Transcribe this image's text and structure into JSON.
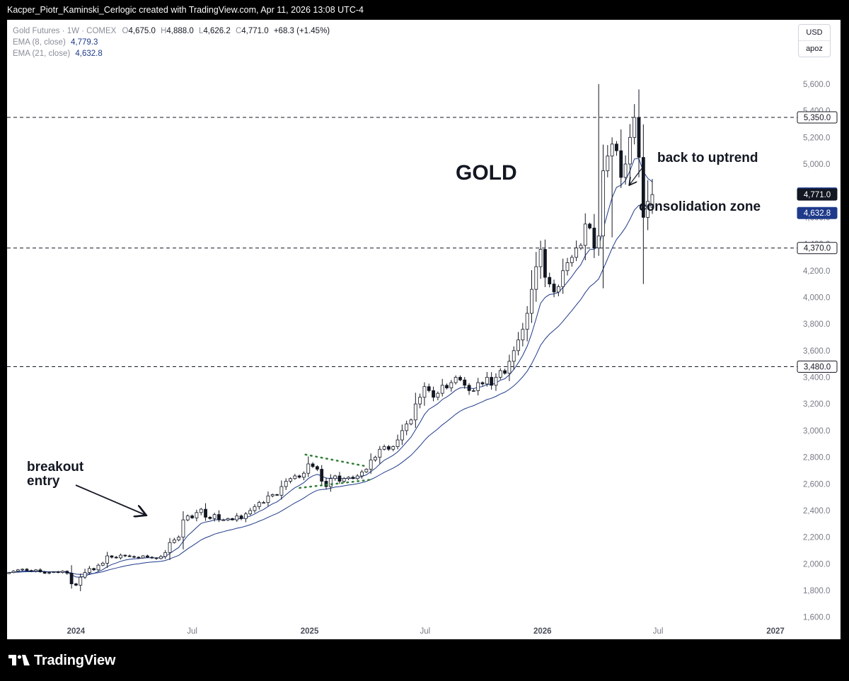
{
  "header": {
    "attribution": "Kacper_Piotr_Kaminski_Cerlogic created with TradingView.com, Apr 11, 2026 13:08 UTC-4"
  },
  "legend": {
    "symbol": "Gold Futures · 1W · COMEX",
    "o_label": "O",
    "o_value": "4,675.0",
    "h_label": "H",
    "h_value": "4,888.0",
    "l_label": "L",
    "l_value": "4,626.2",
    "c_label": "C",
    "c_value": "4,771.0",
    "change": "+68.3 (+1.45%)",
    "ema8_label": "EMA (8, close)",
    "ema8_value": "4,779.3",
    "ema21_label": "EMA (21, close)",
    "ema21_value": "4,632.8"
  },
  "currency_box": {
    "currency": "USD",
    "scale": "apoz"
  },
  "annotations": {
    "title": "GOLD",
    "uptrend": "back to uptrend",
    "consolidation": "consolidation zone",
    "breakout_line1": "breakout",
    "breakout_line2": "entry"
  },
  "footer": {
    "logo_text": "TradingView",
    "logo_icon": "tradingview-logo-icon"
  },
  "colors": {
    "ema": "#1e3a8a",
    "axis_text": "#787b86",
    "candle_up_fill": "#ffffff",
    "candle_down_fill": "#131722",
    "candle_outline": "#131722",
    "pattern_dots": "#2e7d32"
  },
  "chart_data": {
    "type": "candlestick",
    "symbol": "Gold Futures",
    "interval": "1W",
    "exchange": "COMEX",
    "currency": "USD",
    "ylim": [
      1450,
      5780
    ],
    "y_ticks": [
      1600,
      1800,
      2000,
      2200,
      2400,
      2600,
      2800,
      3000,
      3200,
      3400,
      3600,
      3800,
      4000,
      4200,
      4400,
      4600,
      4800,
      5000,
      5200,
      5400,
      5600
    ],
    "y_tick_labels": [
      "1,600.0",
      "1,800.0",
      "2,000.0",
      "2,200.0",
      "2,400.0",
      "2,600.0",
      "2,800.0",
      "3,000.0",
      "3,200.0",
      "3,400.0",
      "3,600.0",
      "3,800.0",
      "4,000.0",
      "4,200.0",
      "4,400.0",
      "4,600.0",
      "4,800.0",
      "5,000.0",
      "5,200.0",
      "5,400.0",
      "5,600.0"
    ],
    "x_range": [
      "2023-09-15",
      "2027-01-22"
    ],
    "x_ticks": [
      {
        "date": "2024-01-01",
        "label": "2024",
        "bold": true
      },
      {
        "date": "2024-07-01",
        "label": "Jul",
        "bold": false
      },
      {
        "date": "2025-01-01",
        "label": "2025",
        "bold": true
      },
      {
        "date": "2025-07-01",
        "label": "Jul",
        "bold": false
      },
      {
        "date": "2026-01-01",
        "label": "2026",
        "bold": true
      },
      {
        "date": "2026-07-01",
        "label": "Jul",
        "bold": false
      },
      {
        "date": "2027-01-01",
        "label": "2027",
        "bold": true
      }
    ],
    "first_week": "2023-09-18",
    "weekly_closes": [
      1935,
      1945,
      1955,
      1960,
      1950,
      1945,
      1955,
      1940,
      1930,
      1935,
      1940,
      1935,
      1945,
      1930,
      1850,
      1840,
      1900,
      1935,
      1965,
      1955,
      1990,
      2005,
      2060,
      2050,
      2045,
      2065,
      2060,
      2055,
      2050,
      2045,
      2060,
      2050,
      2045,
      2040,
      2055,
      2085,
      2160,
      2180,
      2200,
      2330,
      2360,
      2345,
      2385,
      2410,
      2350,
      2340,
      2370,
      2330,
      2330,
      2340,
      2330,
      2360,
      2340,
      2375,
      2400,
      2430,
      2460,
      2460,
      2510,
      2520,
      2515,
      2580,
      2620,
      2640,
      2660,
      2650,
      2680,
      2750,
      2730,
      2710,
      2620,
      2580,
      2640,
      2660,
      2620,
      2640,
      2650,
      2640,
      2660,
      2690,
      2710,
      2780,
      2800,
      2860,
      2880,
      2860,
      2880,
      2930,
      3000,
      3050,
      3080,
      3200,
      3250,
      3330,
      3300,
      3250,
      3280,
      3340,
      3320,
      3360,
      3400,
      3380,
      3340,
      3300,
      3300,
      3360,
      3350,
      3400,
      3340,
      3400,
      3450,
      3430,
      3520,
      3600,
      3680,
      3760,
      3880,
      4060,
      4230,
      4360,
      4150,
      4100,
      4040,
      4080,
      4200,
      4260,
      4300,
      4370,
      4390,
      4550,
      4520,
      4370,
      4460,
      4950,
      5060,
      5150,
      5100,
      4900,
      5000,
      5200,
      5350,
      5050,
      4600,
      4720,
      4771
    ],
    "last_candle": {
      "open": 4675.0,
      "high": 4888.0,
      "low": 4626.2,
      "close": 4771.0
    },
    "ema8_last": 4779.3,
    "ema21_last": 4632.8,
    "horizontal_levels": [
      5350.0,
      4370.0,
      3480.0
    ],
    "price_labels": [
      {
        "value": 5350.0,
        "label": "5,350.0",
        "style": "outline"
      },
      {
        "value": 4779.3,
        "label": "4,779.3",
        "style": "ema"
      },
      {
        "value": 4771.0,
        "label": "4,771.0",
        "style": "dark"
      },
      {
        "value": 4632.8,
        "label": "4,632.8",
        "style": "ema"
      },
      {
        "value": 4370.0,
        "label": "4,370.0",
        "style": "outline"
      },
      {
        "value": 3480.0,
        "label": "3,480.0",
        "style": "outline"
      }
    ]
  }
}
